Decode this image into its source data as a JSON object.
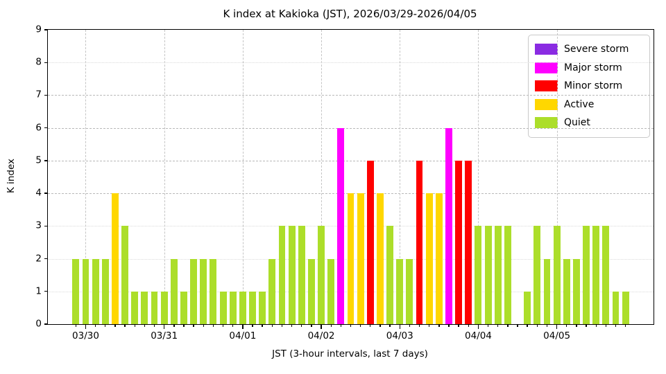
{
  "chart_data": {
    "type": "bar",
    "title": "K index at Kakioka (JST), 2026/03/29-2026/04/05",
    "xlabel": "JST (3-hour intervals, last 7 days)",
    "ylabel": "K index",
    "ylim": [
      0,
      9
    ],
    "yticks": [
      0,
      1,
      2,
      3,
      4,
      5,
      6,
      7,
      8,
      9
    ],
    "x_day_labels": [
      "03/30",
      "03/31",
      "04/01",
      "04/02",
      "04/03",
      "04/04",
      "04/05"
    ],
    "day_tick_slot_indices": [
      1,
      9,
      17,
      25,
      33,
      41,
      49
    ],
    "slots_per_day": 8,
    "num_slots": 57,
    "interval_hours": 3,
    "values": [
      2,
      2,
      2,
      2,
      4,
      3,
      1,
      1,
      1,
      1,
      2,
      1,
      2,
      2,
      2,
      1,
      1,
      1,
      1,
      1,
      2,
      3,
      3,
      3,
      2,
      3,
      2,
      6,
      4,
      4,
      5,
      4,
      3,
      2,
      2,
      5,
      4,
      4,
      6,
      5,
      5,
      3,
      3,
      3,
      3,
      0,
      1,
      3,
      2,
      3,
      2,
      2,
      3,
      3,
      3,
      1,
      1
    ],
    "grid": {
      "dashed_levels": [
        4,
        5,
        6,
        7
      ],
      "dotted_levels": [
        1,
        2,
        3,
        8
      ],
      "vertical_at_day_ticks": true
    },
    "legend": {
      "position": "top-right",
      "items": [
        {
          "label": "Severe storm",
          "color": "#8A2BE2"
        },
        {
          "label": "Major storm",
          "color": "#FF00FF"
        },
        {
          "label": "Minor storm",
          "color": "#FF0000"
        },
        {
          "label": "Active",
          "color": "#FFD700"
        },
        {
          "label": "Quiet",
          "color": "#ACDE2A"
        }
      ]
    },
    "level_thresholds": [
      {
        "max": 3,
        "level": "Quiet",
        "color": "#ACDE2A"
      },
      {
        "max": 4,
        "level": "Active",
        "color": "#FFD700"
      },
      {
        "max": 5,
        "level": "Minor storm",
        "color": "#FF0000"
      },
      {
        "max": 7,
        "level": "Major storm",
        "color": "#FF00FF"
      },
      {
        "max": 9,
        "level": "Severe storm",
        "color": "#8A2BE2"
      }
    ]
  }
}
